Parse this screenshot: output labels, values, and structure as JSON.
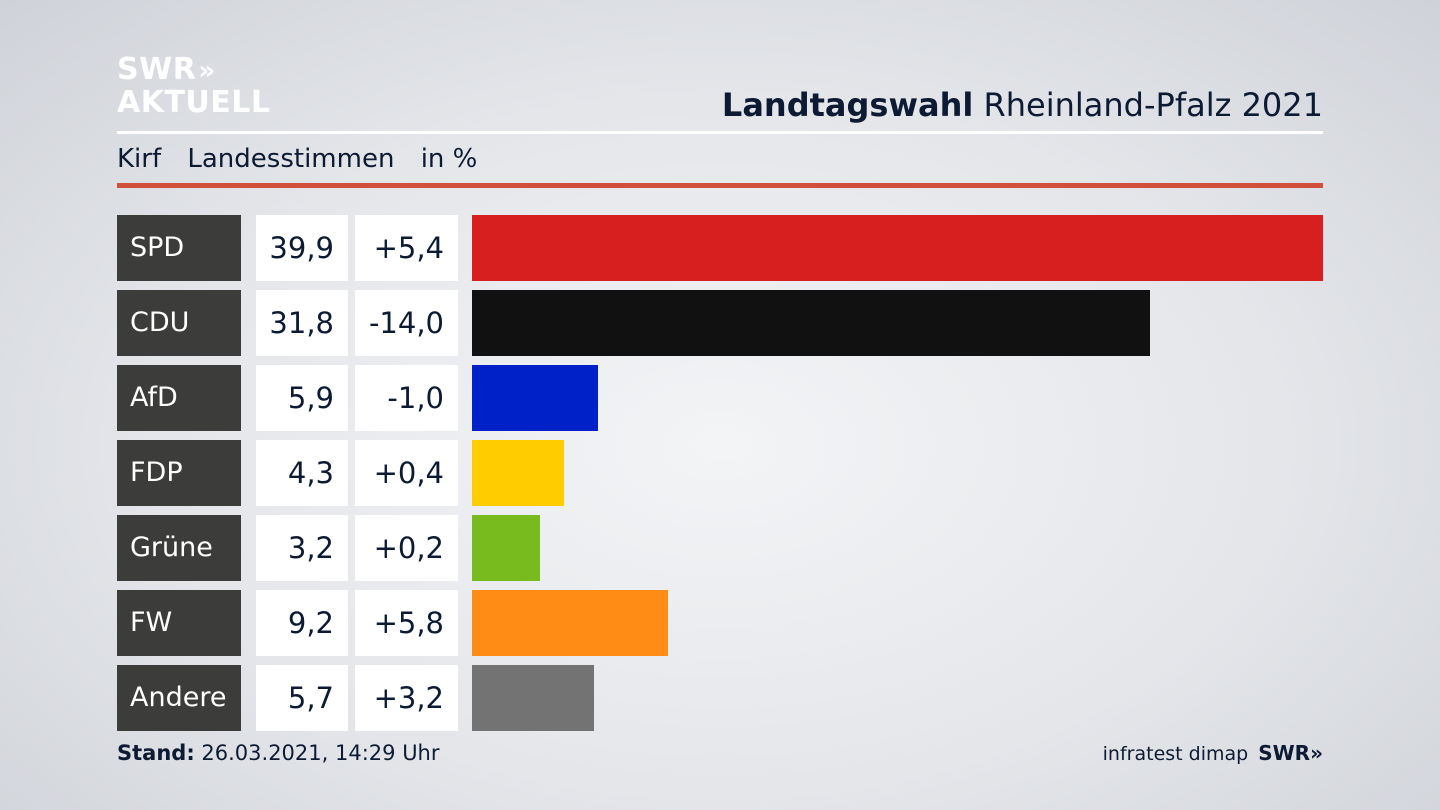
{
  "brand": {
    "line1": "SWR",
    "arrows": "»",
    "line2": "AKTUELL"
  },
  "header": {
    "title_bold": "Landtagswahl",
    "title_rest": "Rheinland-Pfalz 2021"
  },
  "subheader": {
    "place": "Kirf",
    "measure": "Landesstimmen",
    "unit": "in %"
  },
  "footer": {
    "stand_label": "Stand:",
    "stand_value": "26.03.2021, 14:29 Uhr",
    "source": "infratest dimap",
    "brand": "SWR",
    "brand_arrows": "»"
  },
  "chart_data": {
    "type": "bar",
    "orientation": "horizontal",
    "title": "Landtagswahl Rheinland-Pfalz 2021",
    "subtitle": "Kirf Landesstimmen in %",
    "categories": [
      "SPD",
      "CDU",
      "AfD",
      "FDP",
      "Grüne",
      "FW",
      "Andere"
    ],
    "values": [
      39.9,
      31.8,
      5.9,
      4.3,
      3.2,
      9.2,
      5.7
    ],
    "value_labels": [
      "39,9",
      "31,8",
      "5,9",
      "4,3",
      "3,2",
      "9,2",
      "5,7"
    ],
    "changes": [
      5.4,
      -14.0,
      -1.0,
      0.4,
      0.2,
      5.8,
      3.2
    ],
    "change_labels": [
      "+5,4",
      "-14,0",
      "-1,0",
      "+0,4",
      "+0,2",
      "+5,8",
      "+3,2"
    ],
    "colors": [
      "#d71f1f",
      "#111111",
      "#0021c8",
      "#ffcc00",
      "#78bb1e",
      "#ff8c14",
      "#737373"
    ],
    "xlim": [
      0,
      39.9
    ]
  }
}
